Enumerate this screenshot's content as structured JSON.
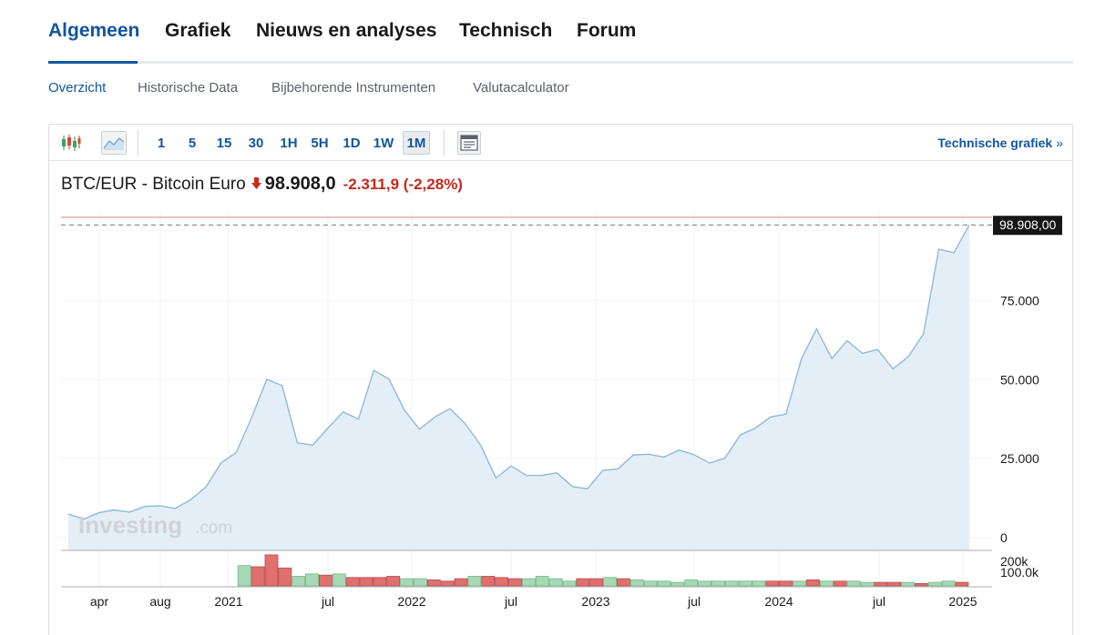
{
  "main_tabs": [
    {
      "label": "Algemeen",
      "active": true
    },
    {
      "label": "Grafiek",
      "active": false
    },
    {
      "label": "Nieuws en analyses",
      "active": false
    },
    {
      "label": "Technisch",
      "active": false
    },
    {
      "label": "Forum",
      "active": false
    }
  ],
  "sub_tabs": [
    {
      "label": "Overzicht",
      "active": true
    },
    {
      "label": "Historische Data",
      "active": false
    },
    {
      "label": "Bijbehorende Instrumenten",
      "active": false
    },
    {
      "label": "Valutacalculator",
      "active": false
    }
  ],
  "toolbar": {
    "candlestick_icon": "candlestick-icon",
    "area_icon": "area-chart-icon",
    "intervals": [
      {
        "label": "1",
        "active": false
      },
      {
        "label": "5",
        "active": false
      },
      {
        "label": "15",
        "active": false
      },
      {
        "label": "30",
        "active": false
      },
      {
        "label": "1H",
        "active": false
      },
      {
        "label": "5H",
        "active": false
      },
      {
        "label": "1D",
        "active": false
      },
      {
        "label": "1W",
        "active": false
      },
      {
        "label": "1M",
        "active": true
      }
    ],
    "layout_icon": "chart-layout-icon",
    "technical_link": "Technische grafiek",
    "technical_chevron": "»"
  },
  "quote": {
    "name": "BTC/EUR - Bitcoin Euro",
    "direction_icon": "down-arrow-icon",
    "price": "98.908,0",
    "change": "-2.311,9",
    "change_pct": "(-2,28%)"
  },
  "colors": {
    "accent": "#1256a0",
    "negative": "#c8261b",
    "line": "#8fbad6",
    "area": "#e4eef6",
    "vol_up": "#a9d8b6",
    "vol_down": "#e06f6f"
  },
  "watermark": {
    "main": "Investing",
    "suffix": ".com"
  },
  "chart_data": {
    "type": "area",
    "ylim": [
      -4000,
      103000
    ],
    "yticks": [
      0,
      25000,
      50000,
      75000
    ],
    "ytick_labels": [
      "0",
      "25.000",
      "50.000",
      "75.000"
    ],
    "x_labels": [
      "apr",
      "aug",
      "2021",
      "jul",
      "2022",
      "jul",
      "2023",
      "jul",
      "2024",
      "jul",
      "2025"
    ],
    "last_price_label": "98.908,00",
    "last_price": 98908,
    "resistance_level": 101300,
    "series": [
      {
        "values": [
          7500,
          5900,
          7900,
          8800,
          8100,
          9900,
          10100,
          9300,
          12000,
          16000,
          23600,
          27000,
          38000,
          50100,
          48100,
          30000,
          29300,
          34700,
          39800,
          37500,
          52900,
          50200,
          40400,
          34300,
          38200,
          40800,
          36000,
          29300,
          18900,
          22700,
          19700,
          19700,
          20500,
          16200,
          15500,
          21300,
          21800,
          26200,
          26400,
          25500,
          27700,
          26200,
          23600,
          25200,
          32500,
          34700,
          38200,
          39100,
          56500,
          66000,
          56700,
          62300,
          58300,
          59500,
          53400,
          57200,
          64400,
          91200,
          90100,
          98908
        ]
      }
    ],
    "volume": {
      "ytick_labels": [
        "200k",
        "100.0k"
      ],
      "values": [
        0,
        0,
        0,
        0,
        0,
        0,
        0,
        0,
        0,
        0,
        0,
        0,
        0,
        170000,
        160000,
        260000,
        150000,
        80000,
        100000,
        90000,
        100000,
        70000,
        70000,
        70000,
        80000,
        60000,
        60000,
        50000,
        40000,
        60000,
        80000,
        80000,
        70000,
        60000,
        60000,
        80000,
        60000,
        40000,
        60000,
        60000,
        70000,
        60000,
        50000,
        40000,
        40000,
        30000,
        50000,
        40000,
        40000,
        40000,
        40000,
        40000,
        40000,
        40000,
        40000,
        50000,
        40000,
        40000,
        40000,
        30000,
        30000,
        30000,
        30000,
        20000,
        30000,
        40000,
        30000
      ],
      "up": [
        true,
        true,
        true,
        true,
        true,
        true,
        true,
        true,
        true,
        true,
        true,
        true,
        true,
        true,
        false,
        false,
        false,
        true,
        true,
        false,
        true,
        false,
        false,
        false,
        false,
        true,
        true,
        false,
        false,
        false,
        true,
        false,
        false,
        false,
        true,
        true,
        true,
        true,
        false,
        false,
        true,
        false,
        true,
        true,
        true,
        true,
        true,
        true,
        true,
        true,
        true,
        true,
        false,
        false,
        true,
        false,
        true,
        false,
        true,
        true,
        false,
        false,
        true,
        false,
        true,
        true,
        false
      ]
    }
  }
}
